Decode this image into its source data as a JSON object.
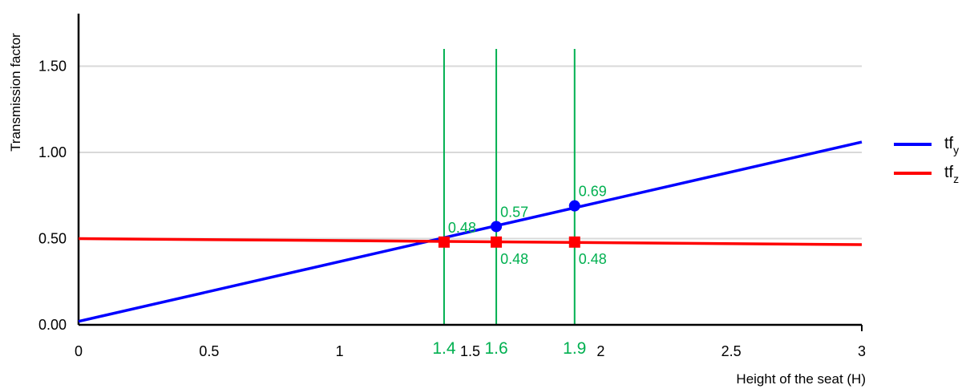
{
  "chart_data": {
    "type": "line",
    "xlabel": "Height of the seat (H)",
    "ylabel": "Transmission factor",
    "xlim": [
      0,
      3
    ],
    "ylim": [
      0,
      1.7
    ],
    "x_ticks": [
      "0",
      "0.5",
      "1",
      "1.5",
      "2",
      "2.5",
      "3"
    ],
    "y_ticks": [
      "0.00",
      "0.50",
      "1.00",
      "1.50"
    ],
    "grid": "horizontal",
    "legend": "right",
    "series": [
      {
        "name": "tf",
        "subscript": "y",
        "color": "#0000ff",
        "points": [
          [
            0,
            0.02
          ],
          [
            3,
            1.06
          ]
        ]
      },
      {
        "name": "tf",
        "subscript": "z",
        "color": "#ff0000",
        "points": [
          [
            0,
            0.5
          ],
          [
            3,
            0.465
          ]
        ]
      }
    ],
    "annotation_color": "#00b050",
    "markers": [
      {
        "series": 0,
        "x": 1.6,
        "y": 0.57,
        "shape": "circle",
        "label": "0.57"
      },
      {
        "series": 0,
        "x": 1.9,
        "y": 0.69,
        "shape": "circle",
        "label": "0.69"
      },
      {
        "series": 1,
        "x": 1.4,
        "y": 0.48,
        "shape": "square",
        "label": "0.48"
      },
      {
        "series": 1,
        "x": 1.6,
        "y": 0.48,
        "shape": "square",
        "label": "0.48"
      },
      {
        "series": 1,
        "x": 1.9,
        "y": 0.48,
        "shape": "square",
        "label": "0.48"
      }
    ],
    "vertical_lines": [
      {
        "x": 1.4,
        "label": "1.4"
      },
      {
        "x": 1.6,
        "label": "1.6"
      },
      {
        "x": 1.9,
        "label": "1.9"
      }
    ]
  }
}
